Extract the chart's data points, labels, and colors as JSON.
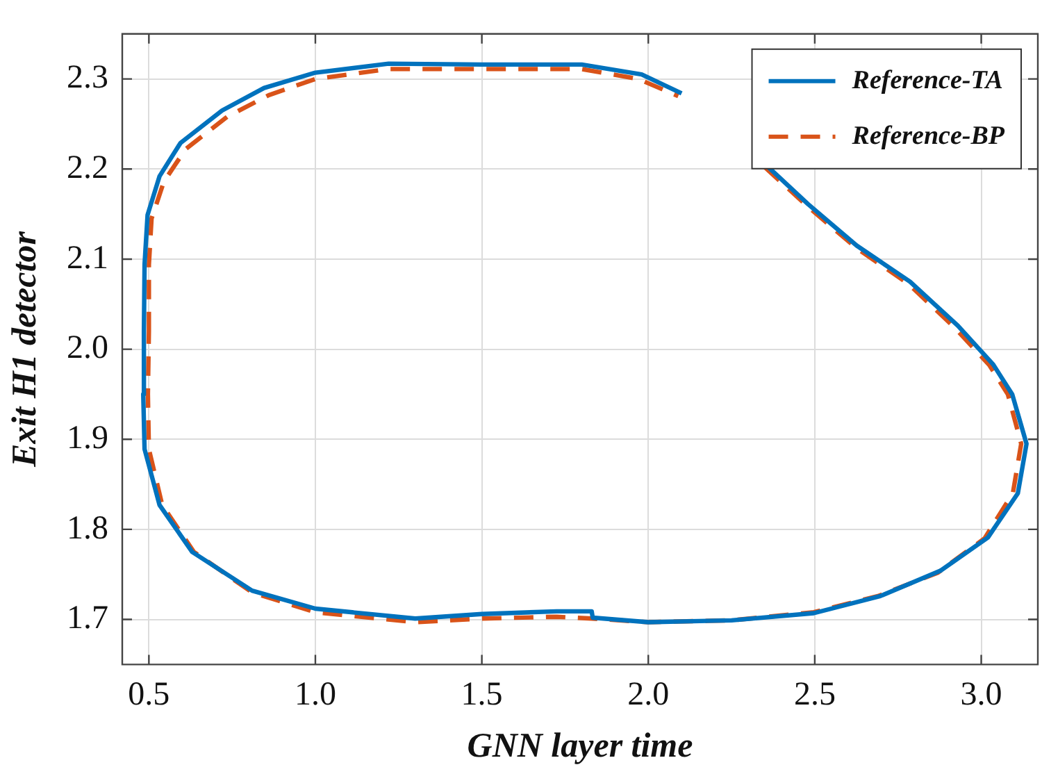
{
  "chart_data": {
    "type": "line",
    "xlabel": "GNN layer time",
    "ylabel": "Exit H1 detector",
    "xlim": [
      0.42,
      3.17
    ],
    "ylim": [
      1.65,
      2.35
    ],
    "xticks": [
      0.5,
      {
        "value": 1,
        "label": "1.0"
      },
      1.5,
      {
        "value": 2,
        "label": "2.0"
      },
      2.5,
      {
        "value": 3,
        "label": "3.0"
      }
    ],
    "yticks": [
      1.7,
      1.8,
      1.9,
      {
        "value": 2,
        "label": "2.0"
      },
      2.1,
      2.2,
      2.3
    ],
    "grid": true,
    "legend": "top right",
    "marker": "none",
    "series": [
      {
        "name": "Reference-TA",
        "color": "#0072bd",
        "line_style": "solid",
        "x": [
          0.485,
          0.487,
          0.496,
          0.532,
          0.595,
          0.72,
          0.846,
          1.0,
          1.22,
          1.5,
          1.8,
          1.98,
          2.1,
          2.25,
          2.355,
          2.48,
          2.626,
          2.786,
          2.93,
          3.036,
          3.093,
          3.136,
          3.11,
          3.02,
          2.877,
          2.697,
          2.497,
          2.25,
          2.0,
          1.833,
          1.83,
          1.725,
          1.5,
          1.3,
          1.0,
          0.81,
          0.63,
          0.532,
          0.487,
          0.483,
          0.485
        ],
        "values": [
          2.02,
          2.094,
          2.149,
          2.192,
          2.229,
          2.265,
          2.29,
          2.307,
          2.317,
          2.316,
          2.316,
          2.305,
          2.284,
          null,
          2.204,
          2.161,
          2.115,
          2.075,
          2.026,
          1.983,
          1.95,
          1.895,
          1.84,
          1.791,
          1.754,
          1.726,
          1.707,
          1.699,
          1.697,
          1.702,
          1.709,
          1.709,
          1.706,
          1.701,
          1.712,
          1.732,
          1.775,
          1.827,
          1.889,
          1.95,
          2.02
        ]
      },
      {
        "name": "Reference-BP",
        "color": "#d95319",
        "line_style": "dashed",
        "x": [
          0.5,
          0.5,
          0.508,
          0.545,
          0.61,
          0.735,
          0.86,
          1.0,
          1.22,
          1.5,
          1.8,
          1.97,
          2.09,
          2.24,
          2.35,
          2.48,
          2.626,
          2.78,
          2.92,
          3.025,
          3.08,
          3.12,
          3.095,
          3.01,
          2.87,
          2.69,
          2.497,
          2.25,
          2.0,
          1.83,
          1.725,
          1.5,
          1.3,
          1.0,
          0.81,
          0.635,
          0.54,
          0.5,
          0.497,
          0.5
        ],
        "values": [
          2.02,
          2.094,
          2.145,
          2.186,
          2.222,
          2.258,
          2.282,
          2.3,
          2.311,
          2.311,
          2.311,
          2.3,
          2.281,
          null,
          2.202,
          2.158,
          2.112,
          2.073,
          2.024,
          1.982,
          1.95,
          1.895,
          1.84,
          1.79,
          1.752,
          1.726,
          1.708,
          1.699,
          1.697,
          1.701,
          1.703,
          1.701,
          1.697,
          1.708,
          1.73,
          1.775,
          1.827,
          1.889,
          1.95,
          2.02
        ]
      }
    ]
  }
}
